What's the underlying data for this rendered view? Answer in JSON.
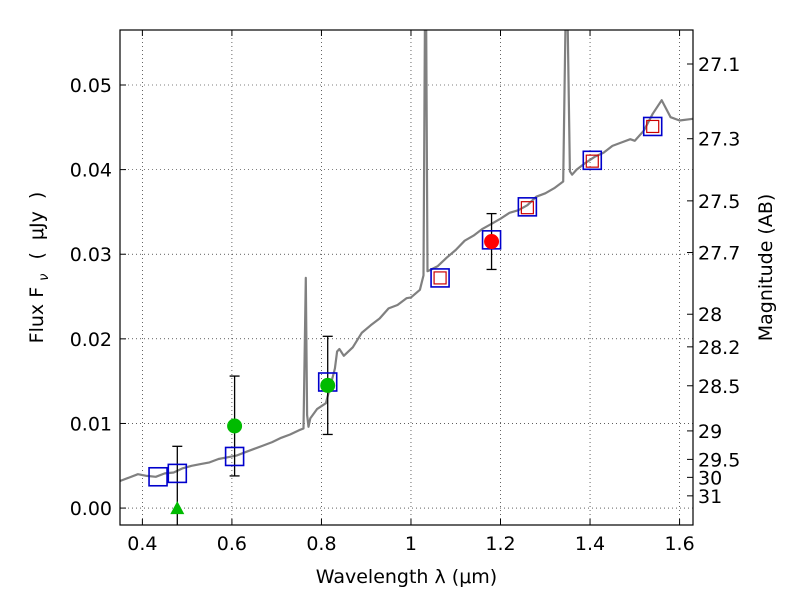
{
  "chart_data": {
    "type": "scatter",
    "xlabel": "Wavelength  λ (μm)",
    "ylabel_left": "Flux  F",
    "ylabel_left_sub": "ν",
    "ylabel_left_unit_open": "(",
    "ylabel_left_unit": "μJy",
    "ylabel_left_unit_close": ")",
    "ylabel_right": "Magnitude (AB)",
    "xlim": [
      0.35,
      1.63
    ],
    "ylim": [
      -0.002,
      0.0565
    ],
    "grid": true,
    "x_ticks": [
      {
        "value": 0.4,
        "label": "0.4"
      },
      {
        "value": 0.6,
        "label": "0.6"
      },
      {
        "value": 0.8,
        "label": "0.8"
      },
      {
        "value": 1.0,
        "label": "1"
      },
      {
        "value": 1.2,
        "label": "1.2"
      },
      {
        "value": 1.4,
        "label": "1.4"
      },
      {
        "value": 1.6,
        "label": "1.6"
      }
    ],
    "y_ticks": [
      {
        "value": 0.0,
        "label": "0.00"
      },
      {
        "value": 0.01,
        "label": "0.01"
      },
      {
        "value": 0.02,
        "label": "0.02"
      },
      {
        "value": 0.03,
        "label": "0.03"
      },
      {
        "value": 0.04,
        "label": "0.04"
      },
      {
        "value": 0.05,
        "label": "0.05"
      }
    ],
    "right_ticks": [
      {
        "value": 27.1,
        "label": "27.1"
      },
      {
        "value": 27.3,
        "label": "27.3"
      },
      {
        "value": 27.5,
        "label": "27.5"
      },
      {
        "value": 27.7,
        "label": "27.7"
      },
      {
        "value": 28,
        "label": "28"
      },
      {
        "value": 28.2,
        "label": "28.2"
      },
      {
        "value": 28.5,
        "label": "28.5"
      },
      {
        "value": 29,
        "label": "29"
      },
      {
        "value": 29.5,
        "label": "29.5"
      },
      {
        "value": 30,
        "label": "30"
      },
      {
        "value": 31,
        "label": "31"
      }
    ],
    "series": [
      {
        "name": "model-spectrum",
        "kind": "line",
        "color": "#808080",
        "x": [
          0.35,
          0.37,
          0.39,
          0.41,
          0.43,
          0.45,
          0.47,
          0.49,
          0.51,
          0.53,
          0.55,
          0.57,
          0.59,
          0.61,
          0.63,
          0.65,
          0.67,
          0.69,
          0.71,
          0.73,
          0.75,
          0.76,
          0.765,
          0.768,
          0.771,
          0.775,
          0.79,
          0.81,
          0.83,
          0.835,
          0.84,
          0.85,
          0.87,
          0.89,
          0.91,
          0.93,
          0.95,
          0.97,
          0.99,
          1.0,
          1.02,
          1.028,
          1.031,
          1.034,
          1.037,
          1.045,
          1.06,
          1.08,
          1.1,
          1.12,
          1.14,
          1.16,
          1.18,
          1.2,
          1.22,
          1.24,
          1.26,
          1.28,
          1.3,
          1.32,
          1.34,
          1.345,
          1.35,
          1.355,
          1.36,
          1.37,
          1.39,
          1.41,
          1.43,
          1.45,
          1.47,
          1.49,
          1.5,
          1.52,
          1.54,
          1.56,
          1.58,
          1.6,
          1.63
        ],
        "y": [
          0.0032,
          0.0036,
          0.004,
          0.0038,
          0.0037,
          0.0041,
          0.0042,
          0.0047,
          0.005,
          0.0052,
          0.0054,
          0.0058,
          0.006,
          0.0062,
          0.0066,
          0.007,
          0.0074,
          0.0078,
          0.0083,
          0.0087,
          0.0092,
          0.0094,
          0.0272,
          0.011,
          0.0096,
          0.0106,
          0.0117,
          0.0124,
          0.0165,
          0.0185,
          0.0188,
          0.018,
          0.019,
          0.0207,
          0.0216,
          0.0224,
          0.0236,
          0.024,
          0.0248,
          0.0249,
          0.0258,
          0.0275,
          0.057,
          0.0568,
          0.028,
          0.0282,
          0.0286,
          0.0296,
          0.0305,
          0.0316,
          0.0322,
          0.033,
          0.0336,
          0.0342,
          0.0349,
          0.0352,
          0.0358,
          0.0368,
          0.0372,
          0.0378,
          0.0386,
          0.0565,
          0.057,
          0.0398,
          0.0394,
          0.04,
          0.0408,
          0.0415,
          0.042,
          0.0428,
          0.0432,
          0.0436,
          0.0434,
          0.0446,
          0.0466,
          0.0482,
          0.0462,
          0.0458,
          0.046
        ]
      },
      {
        "name": "model-photometry",
        "kind": "open-square",
        "color": "#0000cc",
        "x": [
          0.435,
          0.478,
          0.606,
          0.814,
          1.065,
          1.18,
          1.26,
          1.405,
          1.54
        ],
        "y": [
          0.0037,
          0.0041,
          0.0061,
          0.0149,
          0.0272,
          0.0317,
          0.0356,
          0.0411,
          0.0451
        ]
      },
      {
        "name": "hst-wfc3-photometry",
        "kind": "open-square-small",
        "color": "#cc0000",
        "x": [
          1.065,
          1.26,
          1.405,
          1.54
        ],
        "y": [
          0.0272,
          0.0355,
          0.041,
          0.0451
        ]
      },
      {
        "name": "acs-detections",
        "kind": "filled-circle",
        "color": "#00bb00",
        "x": [
          0.606,
          0.814
        ],
        "y": [
          0.0097,
          0.0145
        ],
        "yerr": [
          0.0059,
          0.0058
        ]
      },
      {
        "name": "acs-upper-limit",
        "kind": "filled-triangle",
        "color": "#00bb00",
        "x": [
          0.478
        ],
        "y": [
          0.0
        ],
        "yerr": [
          0.0073
        ]
      },
      {
        "name": "wfc3-detection",
        "kind": "filled-circle",
        "color": "#ff0000",
        "x": [
          1.18
        ],
        "y": [
          0.0315
        ],
        "yerr": [
          0.0033
        ]
      }
    ]
  }
}
